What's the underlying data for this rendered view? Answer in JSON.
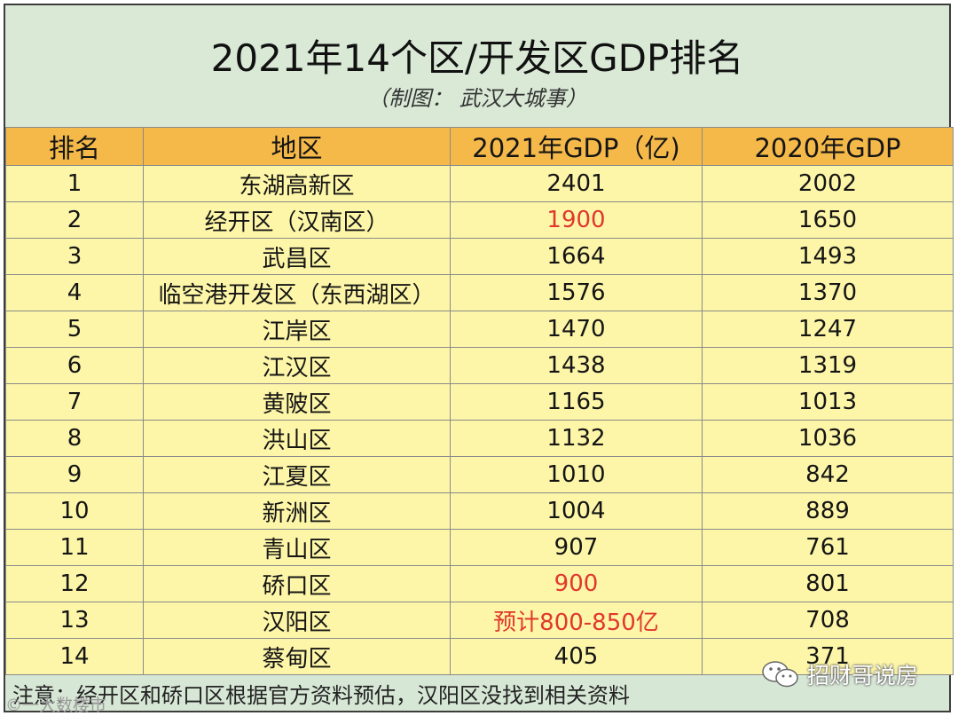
{
  "header": {
    "title": "2021年14个区/开发区GDP排名",
    "subtitle": "（制图：  武汉大城事）"
  },
  "table": {
    "columns": [
      "排名",
      "地区",
      "2021年GDP（亿)",
      "2020年GDP"
    ],
    "rows": [
      {
        "rank": "1",
        "region": "东湖高新区",
        "gdp2021": "2401",
        "gdp2020": "2002"
      },
      {
        "rank": "2",
        "region": "经开区（汉南区）",
        "gdp2021": "1900",
        "gdp2020": "1650"
      },
      {
        "rank": "3",
        "region": "武昌区",
        "gdp2021": "1664",
        "gdp2020": "1493"
      },
      {
        "rank": "4",
        "region": "临空港开发区（东西湖区）",
        "gdp2021": "1576",
        "gdp2020": "1370"
      },
      {
        "rank": "5",
        "region": "江岸区",
        "gdp2021": "1470",
        "gdp2020": "1247"
      },
      {
        "rank": "6",
        "region": "江汉区",
        "gdp2021": "1438",
        "gdp2020": "1319"
      },
      {
        "rank": "7",
        "region": "黄陂区",
        "gdp2021": "1165",
        "gdp2020": "1013"
      },
      {
        "rank": "8",
        "region": "洪山区",
        "gdp2021": "1132",
        "gdp2020": "1036"
      },
      {
        "rank": "9",
        "region": "江夏区",
        "gdp2021": "1010",
        "gdp2020": "842"
      },
      {
        "rank": "10",
        "region": "新洲区",
        "gdp2021": "1004",
        "gdp2020": "889"
      },
      {
        "rank": "11",
        "region": "青山区",
        "gdp2021": "907",
        "gdp2020": "761"
      },
      {
        "rank": "12",
        "region": "硚口区",
        "gdp2021": "900",
        "gdp2020": "801"
      },
      {
        "rank": "13",
        "region": "汉阳区",
        "gdp2021": "预计800-850亿",
        "gdp2020": "708"
      },
      {
        "rank": "14",
        "region": "蔡甸区",
        "gdp2021": "405",
        "gdp2020": "371"
      }
    ]
  },
  "note": "注意：经开区和硚口区根据官方资料预估，汉阳区没找到相关资料",
  "watermarks": {
    "left": "©一大数楼市",
    "right": "招财哥说房",
    "right_icon": "wechat-icon"
  },
  "colors": {
    "title_bg": "#d9e9d6",
    "header_bg": "#f5b94a",
    "row_bg": "#fdf6a8",
    "highlight_red": "#e0382d"
  }
}
